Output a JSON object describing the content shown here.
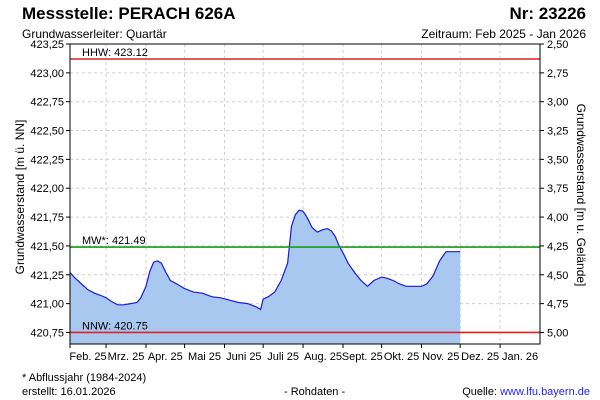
{
  "header": {
    "station": "Messstelle: PERACH 626A",
    "number": "Nr: 23226",
    "aquifer": "Grundwasserleiter: Quartär",
    "period": "Zeitraum: Feb 2025 - Jan 2026"
  },
  "footer": {
    "note": "* Abflussjahr (1984-2024)",
    "created": "erstellt:  16.01.2026",
    "rawdata": "- Rohdaten -",
    "source_label": "Quelle: ",
    "source_link": "www.lfu.bayern.de"
  },
  "colors": {
    "fill": "#a9c8ef",
    "line": "#1a1adb",
    "hhw": "#e02020",
    "nnw": "#e02020",
    "mw": "#1a9a1a",
    "grid": "#d0d0d0"
  },
  "chart_data": {
    "type": "area",
    "ylabel_left": "Grundwasserstand [m ü. NN]",
    "ylabel_right": "Grundwasserstand [m u. Gelände]",
    "ylim": [
      420.65,
      423.25
    ],
    "yticks_left": [
      "420,75",
      "421,00",
      "421,25",
      "421,50",
      "421,75",
      "422,00",
      "422,25",
      "422,50",
      "422,75",
      "423,00",
      "423,25"
    ],
    "yticks_left_values": [
      420.75,
      421.0,
      421.25,
      421.5,
      421.75,
      422.0,
      422.25,
      422.5,
      422.75,
      423.0,
      423.25
    ],
    "yticks_right": [
      "5,00",
      "4,75",
      "4,50",
      "4,25",
      "4,00",
      "3,75",
      "3,50",
      "3,25",
      "3,00",
      "2,75",
      "2,50"
    ],
    "months": [
      "Feb. 25",
      "Mrz. 25",
      "Apr. 25",
      "Mai 25",
      "Juni 25",
      "Juli 25",
      "Aug. 25",
      "Sept. 25",
      "Okt. 25",
      "Nov. 25",
      "Dez. 25",
      "Jan. 26"
    ],
    "reference_lines": [
      {
        "label": "HHW: 423.12",
        "value": 423.12
      },
      {
        "label": "MW*: 421.49",
        "value": 421.49
      },
      {
        "label": "NNW: 420.75",
        "value": 420.75
      }
    ],
    "series": [
      {
        "x": [
          "2025-02-01",
          "2025-02-05",
          "2025-02-10",
          "2025-02-15",
          "2025-02-20",
          "2025-02-25",
          "2025-03-01",
          "2025-03-05",
          "2025-03-10",
          "2025-03-15",
          "2025-03-20",
          "2025-03-25",
          "2025-03-28",
          "2025-04-01",
          "2025-04-04",
          "2025-04-07",
          "2025-04-10",
          "2025-04-13",
          "2025-04-16",
          "2025-04-20",
          "2025-04-25",
          "2025-05-01",
          "2025-05-08",
          "2025-05-15",
          "2025-05-22",
          "2025-05-29",
          "2025-06-05",
          "2025-06-12",
          "2025-06-19",
          "2025-06-26",
          "2025-06-29",
          "2025-07-01",
          "2025-07-05",
          "2025-07-10",
          "2025-07-15",
          "2025-07-20",
          "2025-07-23",
          "2025-07-26",
          "2025-07-29",
          "2025-08-01",
          "2025-08-04",
          "2025-08-08",
          "2025-08-12",
          "2025-08-16",
          "2025-08-20",
          "2025-08-23",
          "2025-08-26",
          "2025-08-29",
          "2025-09-01",
          "2025-09-05",
          "2025-09-10",
          "2025-09-15",
          "2025-09-20",
          "2025-09-25",
          "2025-10-01",
          "2025-10-05",
          "2025-10-10",
          "2025-10-15",
          "2025-10-20",
          "2025-10-25",
          "2025-11-01",
          "2025-11-05",
          "2025-11-10",
          "2025-11-15",
          "2025-11-20",
          "2025-11-25",
          "2025-11-28",
          "2025-12-01"
        ],
        "values": [
          421.27,
          421.22,
          421.17,
          421.12,
          421.09,
          421.07,
          421.05,
          421.02,
          420.99,
          420.99,
          421.0,
          421.01,
          421.05,
          421.15,
          421.28,
          421.36,
          421.37,
          421.35,
          421.28,
          421.2,
          421.17,
          421.13,
          421.1,
          421.09,
          421.06,
          421.05,
          421.03,
          421.01,
          421.0,
          420.97,
          420.95,
          421.04,
          421.06,
          421.1,
          421.2,
          421.35,
          421.67,
          421.77,
          421.81,
          421.8,
          421.75,
          421.66,
          421.62,
          421.64,
          421.65,
          421.63,
          421.58,
          421.5,
          421.44,
          421.35,
          421.27,
          421.2,
          421.15,
          421.2,
          421.23,
          421.22,
          421.2,
          421.17,
          421.15,
          421.15,
          421.15,
          421.17,
          421.24,
          421.37,
          421.45,
          421.45,
          421.45,
          421.45
        ]
      }
    ]
  }
}
